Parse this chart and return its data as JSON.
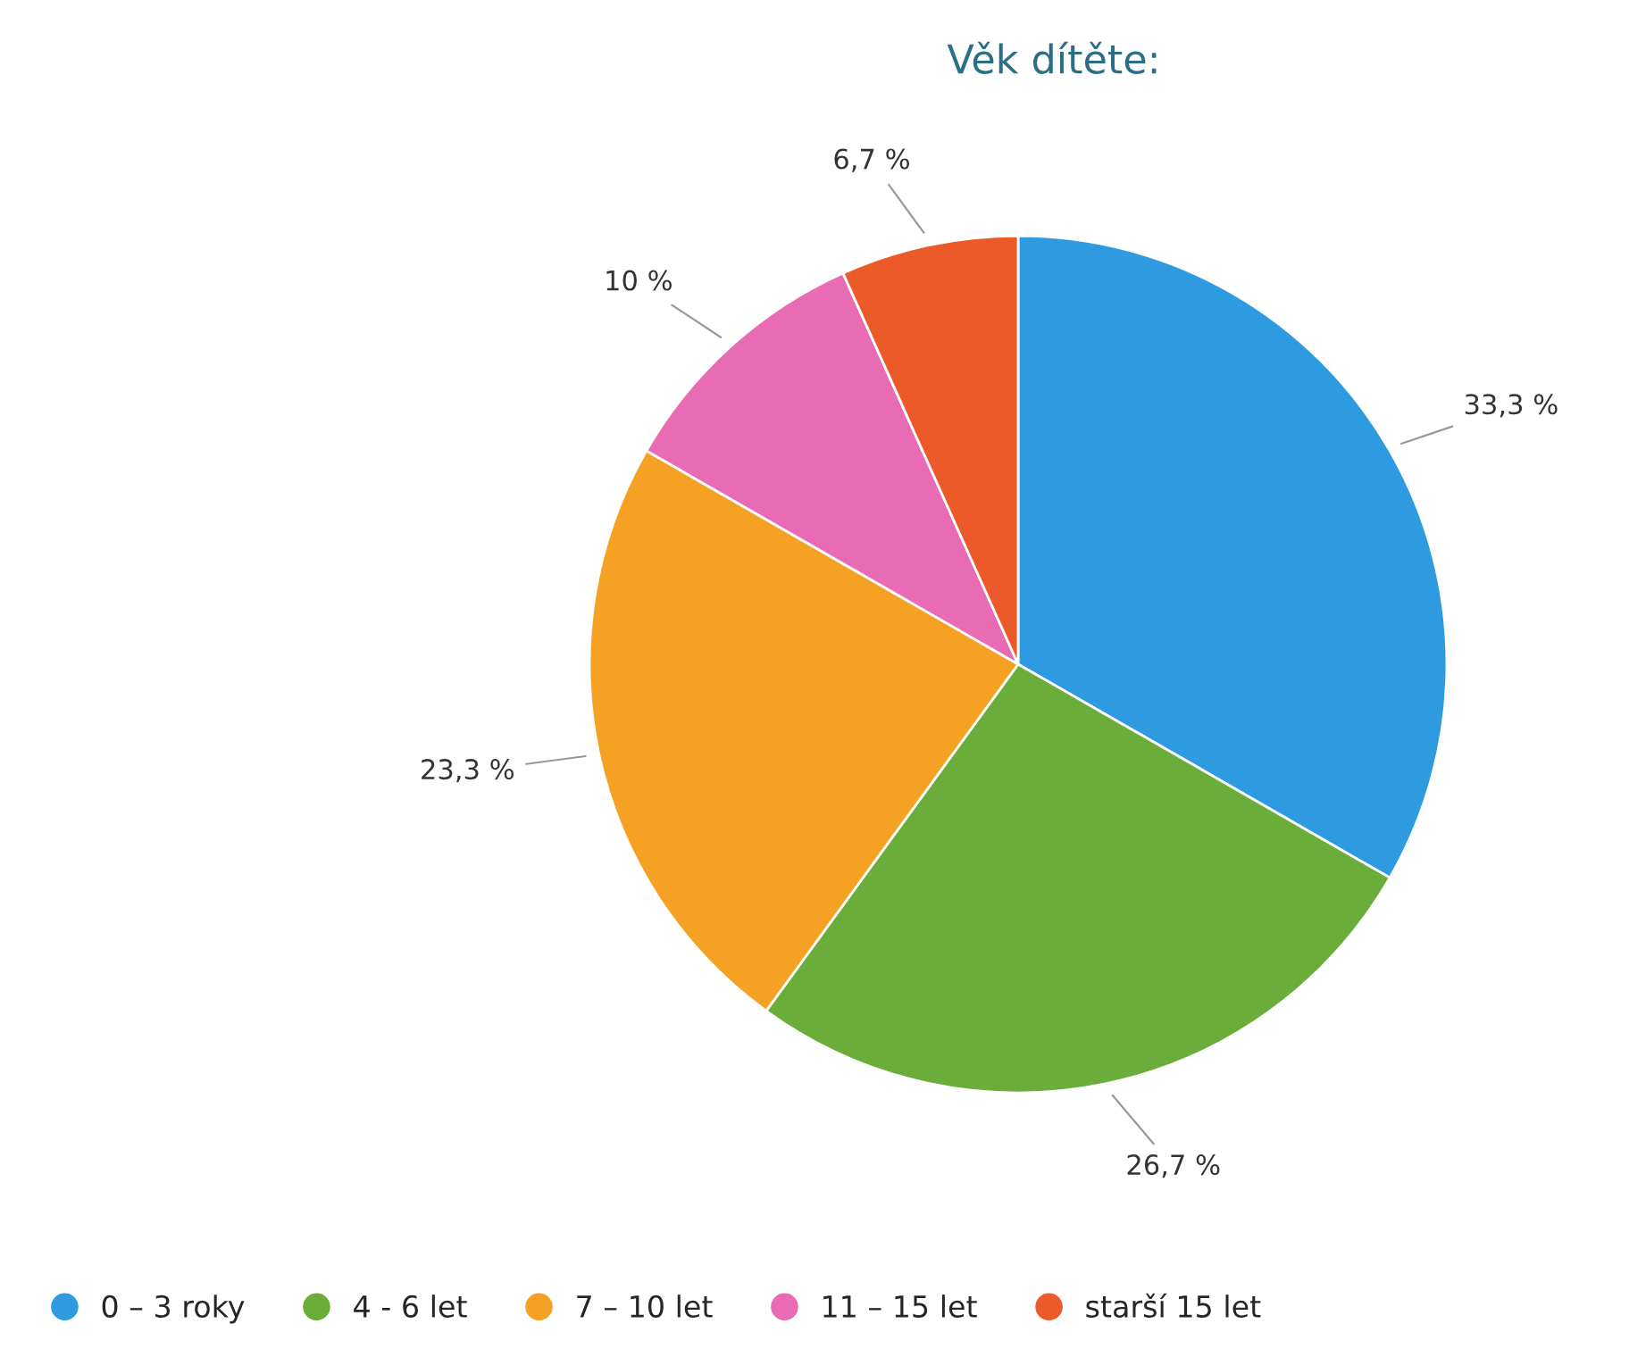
{
  "chart_data": {
    "type": "pie",
    "title": "Věk dítěte:",
    "categories": [
      "0 – 3 roky",
      "4 - 6 let",
      "7 – 10 let",
      "11 – 15 let",
      "starší 15 let"
    ],
    "values": [
      33.3,
      26.7,
      23.3,
      10,
      6.7
    ],
    "colors": [
      "#2e9be0",
      "#6aad3a",
      "#f5a123",
      "#e86bb3",
      "#ec5a2a"
    ],
    "value_labels": [
      "33,3 %",
      "26,7 %",
      "23,3 %",
      "10 %",
      "6,7 %"
    ],
    "legend": "bottom"
  }
}
